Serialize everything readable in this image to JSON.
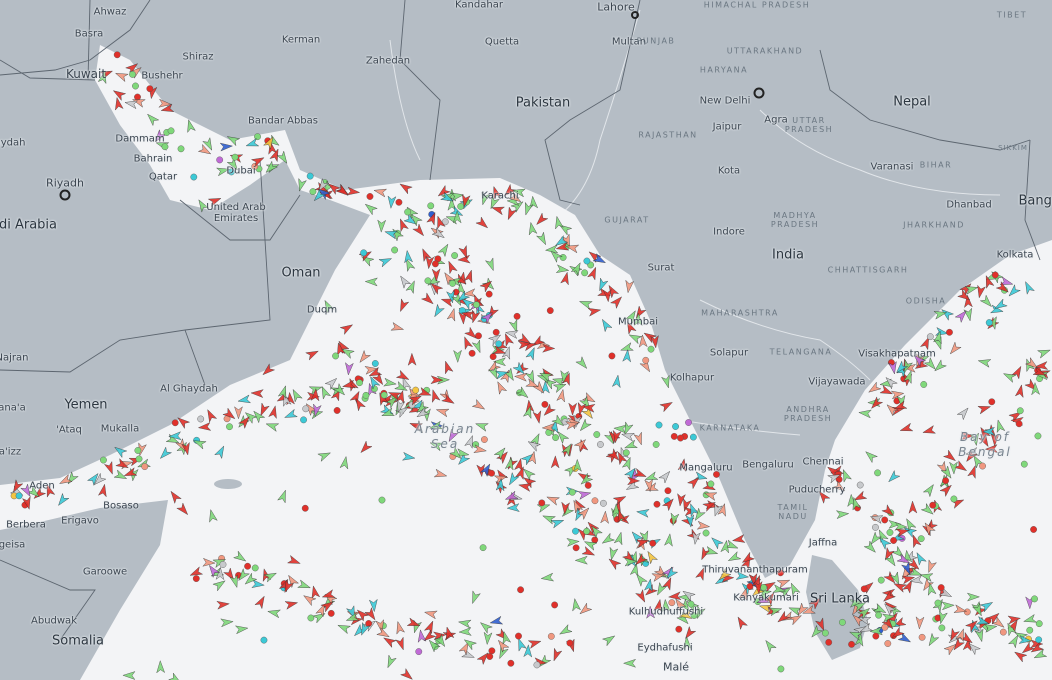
{
  "map": {
    "colors": {
      "land": "#b5bdc5",
      "sea": "#f3f4f6",
      "border": "#5d6670",
      "river": "#e6eaee"
    },
    "vessel_colors": {
      "tanker": "#e0302a",
      "cargo": "#7fd87a",
      "passenger": "#3cc9d6",
      "tug_special": "#f0977f",
      "pleasure": "#c06ad6",
      "unknown": "#c7c9cc",
      "fishing": "#f4c542",
      "high_speed": "#2f5fd0"
    }
  },
  "labels": {
    "countries": {
      "pakistan": "Pakistan",
      "india": "India",
      "nepal": "Nepal",
      "oman": "Oman",
      "yemen": "Yemen",
      "saudi": "di Arabia",
      "somalia": "Somalia",
      "srilanka": "Sri Lanka",
      "uae": "United Arab Emirates",
      "bangla": "Bangl"
    },
    "cities": {
      "ahwaz": "Ahwaz",
      "basra": "Basra",
      "kuwait": "Kuwait",
      "shiraz": "Shiraz",
      "kerman": "Kerman",
      "zahedan": "Zahedan",
      "bushehr": "Bushehr",
      "kandahar": "Kandahar",
      "quetta": "Quetta",
      "multan": "Multan",
      "lahore": "Lahore",
      "newdelhi": "New Delhi",
      "jaipur": "Jaipur",
      "agra": "Agra",
      "kota": "Kota",
      "varanasi": "Varanasi",
      "dhanbad": "Dhanbad",
      "indore": "Indore",
      "kolkata": "Kolkata",
      "karachi": "Karachi",
      "surat": "Surat",
      "mumbai": "Mumbai",
      "solapur": "Solapur",
      "kolhapur": "Kolhapur",
      "visakhapatnam": "Visakhapatnam",
      "vijayawada": "Vijayawada",
      "bengaluru": "Bengaluru",
      "chennai": "Chennai",
      "mangaluru": "Mangaluru",
      "puducherry": "Puducherry",
      "jaffna": "Jaffna",
      "thiruvananthapuram": "Thiruvananthapuram",
      "kanyakumari": "Kanyakumari",
      "kulhudhuffushi": "Kulhudhuffushi",
      "eydhafushi": "Eydhafushi",
      "male": "Malé",
      "riyadh": "Riyadh",
      "bandarabbas": "Bandar Abbas",
      "dammam": "Dammam",
      "bahrain": "Bahrain",
      "qatar": "Qatar",
      "dubai": "Dubai",
      "duqm": "Duqm",
      "alghaydah": "Al Ghaydah",
      "mukalla": "Mukalla",
      "ataq": "'Ataq",
      "aden": "Aden",
      "bosaso": "Bosaso",
      "erigavo": "Erigavo",
      "berbera": "Berbera",
      "hargeisa": "geisa",
      "garoowe": "Garoowe",
      "abudwak": "Abudwak",
      "najran": "Najran",
      "sanaa": "ana'a",
      "taizz": "a'izz",
      "aydah": "aydah"
    },
    "regions": {
      "himachal": "HIMACHAL PRADESH",
      "punjab": "PUNJAB",
      "uttarakhand": "UTTARAKHAND",
      "haryana": "HARYANA",
      "rajasthan": "RAJASTHAN",
      "uttar": "UTTAR PRADESH",
      "bihar": "BIHAR",
      "jharkhand": "JHARKHAND",
      "madhya": "MADHYA PRADESH",
      "gujarat": "GUJARAT",
      "chhattisgarh": "CHHATTISGARH",
      "odisha": "ODISHA",
      "maharashtra": "MAHARASHTRA",
      "telangana": "TELANGANA",
      "andhra": "ANDHRA PRADESH",
      "karnataka": "KARNATAKA",
      "tamil": "TAMIL NADU",
      "tibet": "TIBET",
      "sikkim": "SIKKIM"
    },
    "seas": {
      "arabian": "Arabian Sea",
      "bengal": "Bay of Bengal"
    }
  }
}
